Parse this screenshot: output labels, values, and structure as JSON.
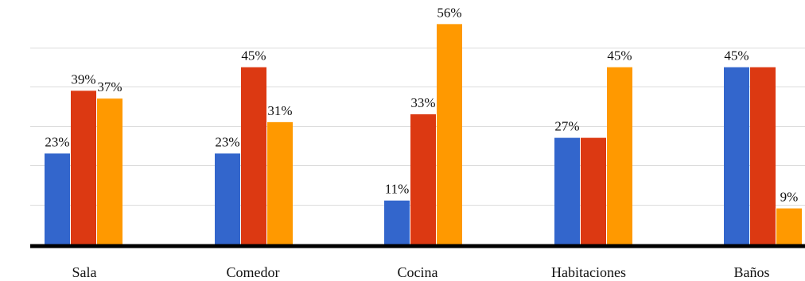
{
  "chart_data": {
    "type": "bar",
    "title": "",
    "xlabel": "",
    "ylabel": "",
    "ylim": [
      0,
      60
    ],
    "grid": true,
    "legend": "none",
    "categories": [
      "Sala",
      "Comedor",
      "Cocina",
      "Habitaciones",
      "Baños"
    ],
    "series": [
      {
        "color": "#3366cc",
        "values": [
          23,
          23,
          11,
          27,
          45
        ]
      },
      {
        "color": "#dc3912",
        "values": [
          39,
          45,
          33,
          27,
          45
        ]
      },
      {
        "color": "#ff9900",
        "values": [
          37,
          31,
          56,
          45,
          9
        ]
      }
    ],
    "data_labels": [
      [
        {
          "series": 0,
          "text": "23%"
        },
        {
          "series": 1,
          "text": "39%"
        },
        {
          "series": 2,
          "text": "37%"
        }
      ],
      [
        {
          "series": 0,
          "text": "23%"
        },
        {
          "series": 1,
          "text": "45%"
        },
        {
          "series": 2,
          "text": "31%"
        }
      ],
      [
        {
          "series": 0,
          "text": "11%"
        },
        {
          "series": 1,
          "text": "33%"
        },
        {
          "series": 2,
          "text": "56%"
        }
      ],
      [
        {
          "series": 0,
          "text": "27%"
        },
        {
          "series": 2,
          "text": "45%"
        }
      ],
      [
        {
          "series": 0,
          "text": "45%"
        },
        {
          "series": 2,
          "text": "9%"
        }
      ]
    ]
  }
}
